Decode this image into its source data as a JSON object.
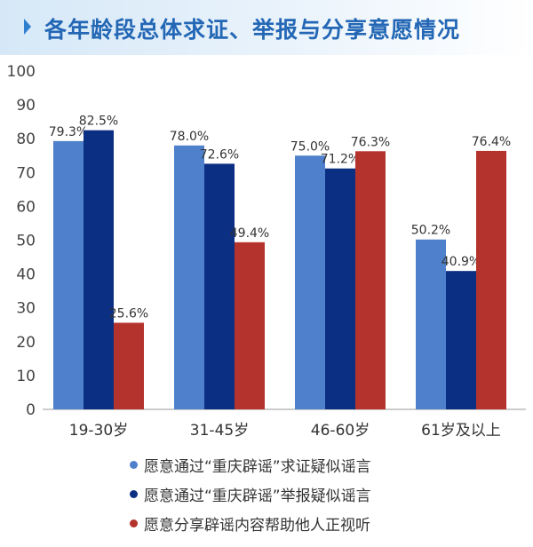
{
  "header": {
    "title": "各年龄段总体求证、举报与分享意愿情况",
    "arrow_icon": "chevron-right-icon"
  },
  "chart_data": {
    "type": "bar",
    "title": "各年龄段总体求证、举报与分享意愿情况",
    "categories": [
      "19-30岁",
      "31-45岁",
      "46-60岁",
      "61岁及以上"
    ],
    "ylim": [
      0,
      100
    ],
    "yticks": [
      0,
      10,
      20,
      30,
      40,
      50,
      60,
      70,
      80,
      90,
      100
    ],
    "grid": false,
    "legend_position": "bottom",
    "series": [
      {
        "name": "愿意通过“重庆辟谣”求证疑似谣言",
        "color": "#4f80cc",
        "values": [
          79.3,
          78.0,
          75.0,
          50.2
        ],
        "labels": [
          "79.3%",
          "78.0%",
          "75.0%",
          "50.2%"
        ]
      },
      {
        "name": "愿意通过“重庆辟谣”举报疑似谣言",
        "color": "#0b2f82",
        "values": [
          82.5,
          72.6,
          71.2,
          40.9
        ],
        "labels": [
          "82.5%",
          "72.6%",
          "71.2%",
          "40.9%"
        ]
      },
      {
        "name": "愿意分享辟谣内容帮助他人正视听",
        "color": "#b5332d",
        "values": [
          25.6,
          49.4,
          76.3,
          76.4
        ],
        "labels": [
          "25.6%",
          "49.4%",
          "76.3%",
          "76.4%"
        ]
      }
    ]
  }
}
